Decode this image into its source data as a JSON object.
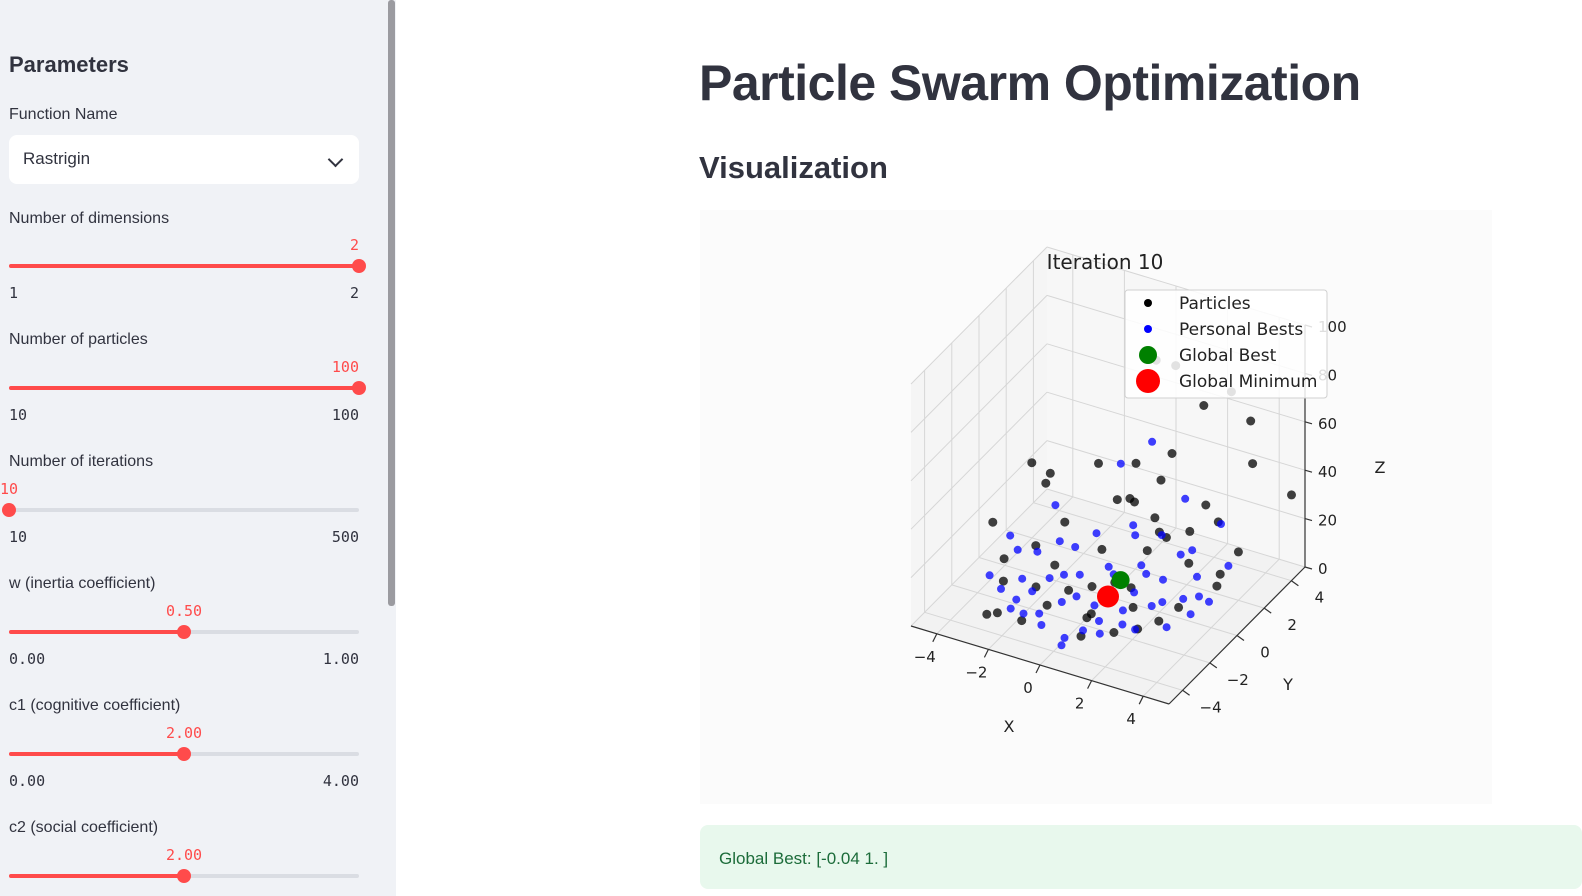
{
  "sidebar": {
    "header": "Parameters",
    "function_select": {
      "label": "Function Name",
      "value": "Rastrigin"
    },
    "sliders": [
      {
        "label": "Number of dimensions",
        "value": "2",
        "min": "1",
        "max": "2",
        "fraction": 1.0
      },
      {
        "label": "Number of particles",
        "value": "100",
        "min": "10",
        "max": "100",
        "fraction": 1.0
      },
      {
        "label": "Number of iterations",
        "value": "10",
        "min": "10",
        "max": "500",
        "fraction": 0.0
      },
      {
        "label": "w (inertia coefficient)",
        "value": "0.50",
        "min": "0.00",
        "max": "1.00",
        "fraction": 0.5
      },
      {
        "label": "c1 (cognitive coefficient)",
        "value": "2.00",
        "min": "0.00",
        "max": "4.00",
        "fraction": 0.5
      },
      {
        "label": "c2 (social coefficient)",
        "value": "2.00",
        "min": "0.00",
        "max": "4.00",
        "fraction": 0.5
      }
    ]
  },
  "main": {
    "title": "Particle Swarm Optimization",
    "subtitle": "Visualization",
    "result": "Global Best: [-0.04 1. ]"
  },
  "chart_data": {
    "type": "scatter",
    "projection": "3d",
    "title": "Iteration 10",
    "xlabel": "X",
    "ylabel": "Y",
    "zlabel": "Z",
    "xlim": [
      -5,
      5
    ],
    "ylim": [
      -5,
      5
    ],
    "zlim": [
      0,
      100
    ],
    "x_ticks": [
      "−4",
      "−2",
      "0",
      "2",
      "4"
    ],
    "y_ticks": [
      "−4",
      "−2",
      "0",
      "2",
      "4"
    ],
    "z_ticks": [
      "0",
      "20",
      "40",
      "60",
      "80",
      "100"
    ],
    "grid": true,
    "legend_position": "upper-right",
    "legend": [
      {
        "name": "Particles",
        "color": "#000000"
      },
      {
        "name": "Personal Bests",
        "color": "#0000ff"
      },
      {
        "name": "Global Best",
        "color": "#008000"
      },
      {
        "name": "Global Minimum",
        "color": "#ff0000"
      }
    ],
    "series": [
      {
        "name": "Particles",
        "color": "#000000",
        "points": [
          [
            -4.8,
            3.5,
            20
          ],
          [
            0.2,
            4.6,
            70
          ],
          [
            1.5,
            4.2,
            60
          ],
          [
            -0.4,
            4.3,
            72
          ],
          [
            3.0,
            4.8,
            55
          ],
          [
            2.2,
            4.9,
            64
          ],
          [
            3.6,
            3.8,
            45
          ],
          [
            4.9,
            4.2,
            34
          ],
          [
            -2.5,
            0.5,
            40
          ],
          [
            -1.0,
            1.2,
            45
          ],
          [
            0.5,
            1.0,
            35
          ],
          [
            1.0,
            2.0,
            40
          ],
          [
            2.0,
            0.5,
            28
          ],
          [
            0.8,
            -0.5,
            12
          ],
          [
            -0.5,
            0.5,
            15
          ],
          [
            1.2,
            1.5,
            22
          ],
          [
            -3.5,
            -1.0,
            10
          ],
          [
            -4.2,
            -0.5,
            20
          ],
          [
            -3.0,
            -2.0,
            8
          ],
          [
            -2.0,
            -1.5,
            6
          ],
          [
            -1.2,
            -2.2,
            5
          ],
          [
            0.3,
            -1.8,
            4
          ],
          [
            1.5,
            -1.0,
            6
          ],
          [
            2.2,
            -2.0,
            5
          ],
          [
            3.0,
            -0.5,
            8
          ],
          [
            3.8,
            0.8,
            12
          ],
          [
            4.0,
            2.0,
            20
          ],
          [
            2.8,
            2.8,
            24
          ],
          [
            1.8,
            2.6,
            18
          ],
          [
            0.5,
            2.5,
            20
          ],
          [
            -0.8,
            2.2,
            25
          ],
          [
            -2.2,
            1.0,
            18
          ],
          [
            -2.8,
            0.0,
            12
          ],
          [
            -1.8,
            -0.5,
            10
          ],
          [
            -0.2,
            -0.8,
            8
          ],
          [
            1.0,
            -0.2,
            8
          ],
          [
            2.5,
            1.2,
            15
          ],
          [
            0.0,
            0.5,
            3
          ],
          [
            -1.5,
            -3.5,
            5
          ],
          [
            -2.6,
            -3.2,
            3
          ],
          [
            -2.8,
            -3.6,
            4
          ],
          [
            0.8,
            -3.5,
            6
          ],
          [
            1.6,
            -2.6,
            5
          ],
          [
            2.6,
            -1.2,
            5
          ],
          [
            -3.2,
            1.5,
            28
          ],
          [
            -0.6,
            3.2,
            35
          ],
          [
            1.1,
            0.8,
            18
          ],
          [
            -1.0,
            -1.0,
            5
          ],
          [
            0.5,
            -2.5,
            7
          ],
          [
            3.4,
            1.8,
            10
          ],
          [
            2.0,
            3.4,
            25
          ],
          [
            -0.1,
            1.8,
            30
          ],
          [
            0.9,
            3.0,
            45
          ]
        ]
      },
      {
        "name": "Personal Bests",
        "color": "#0000ff",
        "points": [
          [
            -3.8,
            -1.5,
            5
          ],
          [
            -3.2,
            -1.8,
            3
          ],
          [
            -2.5,
            -2.0,
            2
          ],
          [
            -1.8,
            -2.8,
            3
          ],
          [
            -1.0,
            -3.0,
            2
          ],
          [
            0.0,
            -3.2,
            1
          ],
          [
            1.0,
            -2.5,
            2
          ],
          [
            2.0,
            -1.8,
            3
          ],
          [
            2.8,
            -1.0,
            2
          ],
          [
            3.2,
            0.0,
            3
          ],
          [
            3.0,
            1.0,
            4
          ],
          [
            2.5,
            1.8,
            6
          ],
          [
            1.5,
            2.5,
            8
          ],
          [
            0.5,
            3.0,
            10
          ],
          [
            -0.5,
            2.8,
            12
          ],
          [
            -1.5,
            2.0,
            10
          ],
          [
            -2.5,
            1.2,
            8
          ],
          [
            -3.0,
            0.5,
            6
          ],
          [
            -2.0,
            -0.5,
            4
          ],
          [
            -1.0,
            -1.5,
            3
          ],
          [
            0.0,
            -1.0,
            2
          ],
          [
            1.0,
            -0.8,
            2
          ],
          [
            2.0,
            0.2,
            3
          ],
          [
            1.5,
            1.2,
            5
          ],
          [
            0.5,
            1.5,
            6
          ],
          [
            -0.5,
            1.0,
            5
          ],
          [
            -1.2,
            0.2,
            4
          ],
          [
            -0.8,
            -0.8,
            2
          ],
          [
            0.2,
            -0.2,
            1
          ],
          [
            0.8,
            0.4,
            2
          ],
          [
            -3.5,
            0.0,
            8
          ],
          [
            -2.8,
            -1.0,
            4
          ],
          [
            0.6,
            -1.8,
            2
          ],
          [
            1.8,
            -0.2,
            3
          ],
          [
            2.6,
            0.6,
            4
          ],
          [
            2.0,
            2.4,
            12
          ],
          [
            0.0,
            2.0,
            14
          ],
          [
            -1.8,
            1.0,
            9
          ],
          [
            -2.2,
            -1.4,
            3
          ],
          [
            -1.4,
            -2.4,
            2
          ],
          [
            0.4,
            -2.6,
            2
          ],
          [
            1.4,
            -1.6,
            2
          ],
          [
            3.6,
            0.6,
            6
          ],
          [
            3.4,
            2.4,
            10
          ],
          [
            -0.4,
            4.0,
            40
          ],
          [
            -1.4,
            3.6,
            30
          ],
          [
            -3.2,
            2.2,
            15
          ],
          [
            -4.0,
            0.4,
            10
          ],
          [
            -2.4,
            -2.6,
            2
          ],
          [
            1.2,
            3.4,
            25
          ],
          [
            2.8,
            3.0,
            22
          ],
          [
            -0.2,
            0.8,
            4
          ],
          [
            0.9,
            1.1,
            6
          ],
          [
            -1.6,
            -0.2,
            5
          ],
          [
            0.2,
            -3.8,
            2
          ]
        ]
      },
      {
        "name": "Global Best",
        "color": "#008000",
        "points": [
          [
            -0.04,
            1.0,
            1
          ]
        ]
      },
      {
        "name": "Global Minimum",
        "color": "#ff0000",
        "points": [
          [
            0,
            0,
            0
          ]
        ]
      }
    ]
  }
}
